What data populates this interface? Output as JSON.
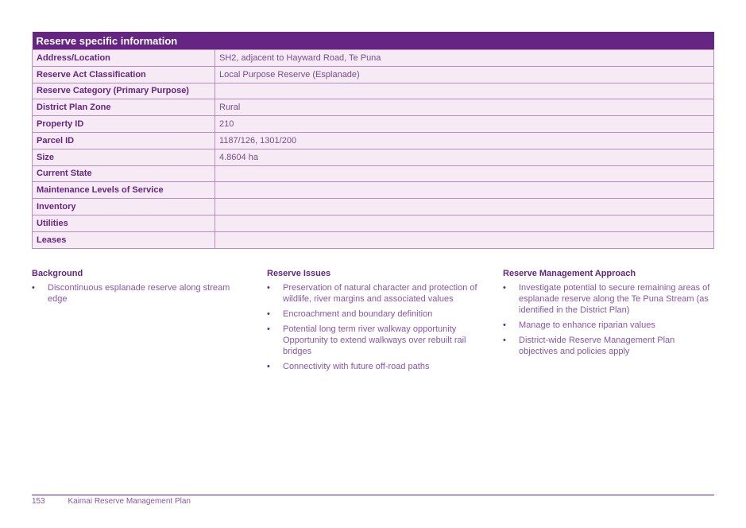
{
  "table": {
    "title": "Reserve specific information",
    "rows": [
      {
        "label": "Address/Location",
        "value": "SH2, adjacent to Hayward Road, Te Puna"
      },
      {
        "label": "Reserve Act Classification",
        "value": "Local Purpose Reserve (Esplanade)"
      },
      {
        "label": "Reserve Category (Primary Purpose)",
        "value": ""
      },
      {
        "label": "District Plan Zone",
        "value": "Rural"
      },
      {
        "label": "Property ID",
        "value": "210"
      },
      {
        "label": "Parcel ID",
        "value": "1187/126, 1301/200"
      },
      {
        "label": "Size",
        "value": "4.8604 ha"
      },
      {
        "label": "Current State",
        "value": ""
      },
      {
        "label": "Maintenance Levels of Service",
        "value": ""
      },
      {
        "label": "Inventory",
        "value": ""
      },
      {
        "label": "Utilities",
        "value": ""
      },
      {
        "label": "Leases",
        "value": ""
      }
    ]
  },
  "sections": [
    {
      "title": "Background",
      "items": [
        "Discontinuous esplanade reserve along stream edge"
      ]
    },
    {
      "title": "Reserve Issues",
      "items": [
        "Preservation of natural character and protection of wildlife, river margins and associated values",
        "Encroachment and boundary definition",
        "Potential long term river walkway opportunity Opportunity to extend walkways over rebuilt rail bridges",
        "Connectivity with future off-road paths"
      ]
    },
    {
      "title": "Reserve Management Approach",
      "items": [
        "Investigate potential to secure remaining areas of esplanade reserve along the Te Puna Stream (as identified in the District Plan)",
        "Manage to enhance riparian values",
        "District-wide Reserve Management Plan objectives and policies apply"
      ]
    }
  ],
  "footer": {
    "page": "153",
    "title": "Kaimai Reserve Management Plan"
  }
}
